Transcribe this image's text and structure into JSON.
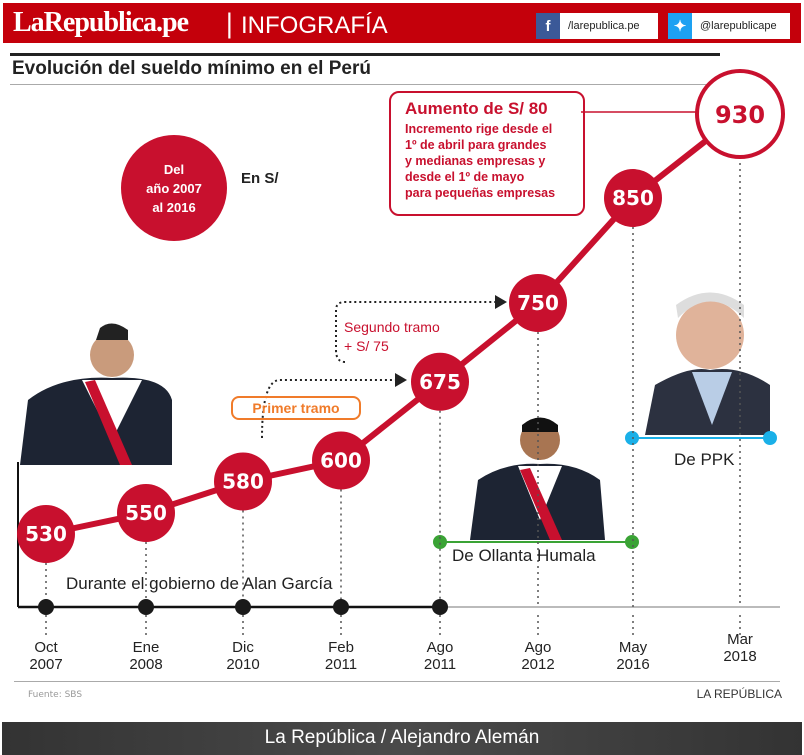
{
  "header": {
    "logo": "LaRepublica.pe",
    "separator": "|",
    "section": "INFOGRAFÍA",
    "facebook": "/larepublica.pe",
    "twitter": "@larepublicape"
  },
  "title": "Evolución del sueldo mínimo en el Perú",
  "period": {
    "line1": "Del",
    "line2": "año 2007",
    "line3": "al 2016"
  },
  "unit": "En S/",
  "callout": {
    "heading": "Aumento de S/ 80",
    "body": [
      "Incremento rige desde el",
      "1º de abril para grandes",
      "y medianas empresas y",
      "desde el 1º de mayo",
      "para pequeñas empresas"
    ]
  },
  "tramos": {
    "primer": "Primer tramo",
    "segundo_1": "Segundo tramo",
    "segundo_2": "+ S/ 75"
  },
  "governments": {
    "garcia": "Durante el gobierno de Alan García",
    "humala": "De Ollanta Humala",
    "ppk": "De PPK"
  },
  "colors": {
    "brand": "#c4000b",
    "point": "#c8102e",
    "humala": "#3aa335",
    "ppk": "#1ab0e8",
    "primer": "#f07b2a"
  },
  "chart_data": {
    "type": "line",
    "title": "Evolución del sueldo mínimo en el Perú",
    "ylabel": "En S/",
    "categories": [
      [
        "Oct",
        "2007"
      ],
      [
        "Ene",
        "2008"
      ],
      [
        "Dic",
        "2010"
      ],
      [
        "Feb",
        "2011"
      ],
      [
        "Ago",
        "2011"
      ],
      [
        "Ago",
        "2012"
      ],
      [
        "May",
        "2016"
      ],
      [
        "Mar",
        "2018"
      ]
    ],
    "values": [
      530,
      550,
      580,
      600,
      675,
      750,
      850,
      930
    ],
    "value_labels": [
      "530",
      "550",
      "580",
      "600",
      "675",
      "750",
      "850",
      "930"
    ]
  },
  "footer": {
    "source": "Fuente: SBS",
    "brand": "LA REPÚBLICA",
    "credit": "La República / Alejandro Alemán"
  }
}
